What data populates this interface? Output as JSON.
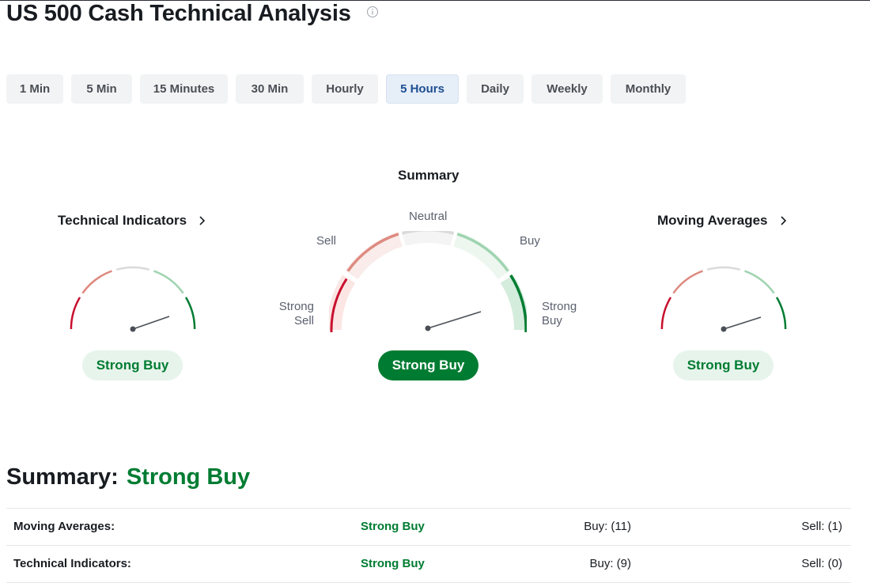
{
  "title": "US 500 Cash Technical Analysis",
  "tabs": [
    {
      "label": "1 Min",
      "active": false
    },
    {
      "label": "5 Min",
      "active": false
    },
    {
      "label": "15 Minutes",
      "active": false
    },
    {
      "label": "30 Min",
      "active": false
    },
    {
      "label": "Hourly",
      "active": false
    },
    {
      "label": "5 Hours",
      "active": true
    },
    {
      "label": "Daily",
      "active": false
    },
    {
      "label": "Weekly",
      "active": false
    },
    {
      "label": "Monthly",
      "active": false
    }
  ],
  "gauges": {
    "summary_heading": "Summary",
    "technical_indicators": {
      "heading": "Technical Indicators",
      "result": "Strong Buy"
    },
    "summary": {
      "result": "Strong Buy",
      "labels": {
        "strong_sell": [
          "Strong",
          "Sell"
        ],
        "sell": "Sell",
        "neutral": "Neutral",
        "buy": "Buy",
        "strong_buy": [
          "Strong",
          "Buy"
        ]
      }
    },
    "moving_averages": {
      "heading": "Moving Averages",
      "result": "Strong Buy"
    }
  },
  "summary_section": {
    "label": "Summary:",
    "value": "Strong Buy",
    "rows": [
      {
        "name": "Moving Averages:",
        "status": "Strong Buy",
        "buy": "Buy: (11)",
        "sell": "Sell: (1)"
      },
      {
        "name": "Technical Indicators:",
        "status": "Strong Buy",
        "buy": "Buy: (9)",
        "sell": "Sell: (0)"
      }
    ]
  },
  "colors": {
    "strong_sell": "#c8102e",
    "sell": "#de8b81",
    "neutral": "#d9dadc",
    "buy": "#9fd4b0",
    "strong_buy": "#007c32",
    "accent_blue": "#1e4f91"
  },
  "icons": [
    "info-icon",
    "chevron-right-icon"
  ]
}
